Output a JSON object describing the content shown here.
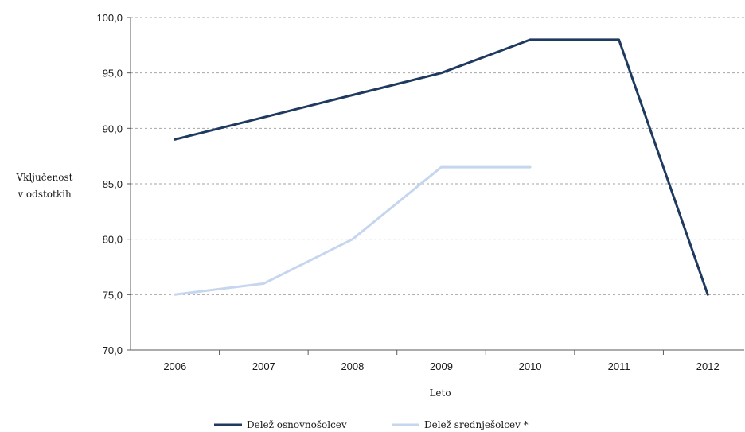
{
  "chart_data": {
    "type": "line",
    "xlabel": "Leto",
    "ylabel_lines": [
      "Vključenost",
      "v odstotkih"
    ],
    "categories": [
      "2006",
      "2007",
      "2008",
      "2009",
      "2010",
      "2011",
      "2012"
    ],
    "y_ticks": [
      "100,0",
      "95,0",
      "90,0",
      "85,0",
      "80,0",
      "75,0",
      "70,0"
    ],
    "ylim": [
      70,
      100
    ],
    "grid": "horizontal dashed",
    "legend_position": "bottom",
    "series": [
      {
        "name": "Delež osnovnošolcev",
        "color": "#1f3a5f",
        "values": [
          89.0,
          91.0,
          93.0,
          95.0,
          98.0,
          98.0,
          75.0
        ]
      },
      {
        "name": "Delež srednješolcev *",
        "color": "#c5d6ee",
        "values": [
          75.0,
          76.0,
          80.0,
          86.5,
          86.5,
          null,
          null
        ]
      }
    ]
  }
}
